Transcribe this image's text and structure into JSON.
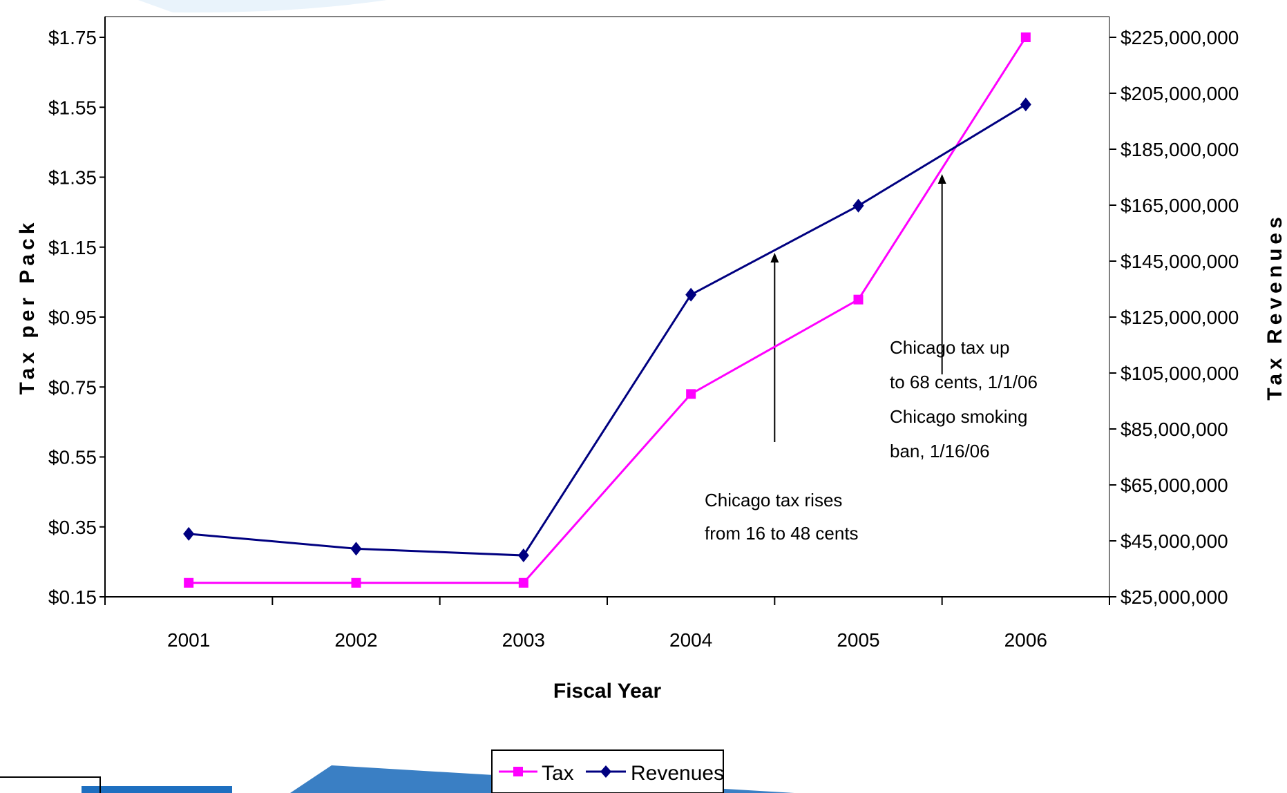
{
  "chart_data": {
    "type": "line",
    "title": "",
    "xlabel": "Fiscal Year",
    "ylabel": "Tax per Pack",
    "y2label": "Tax Revenues",
    "categories": [
      "2001",
      "2002",
      "2003",
      "2004",
      "2005",
      "2006"
    ],
    "y_ticks": [
      "$0.15",
      "$0.35",
      "$0.55",
      "$0.75",
      "$0.95",
      "$1.15",
      "$1.35",
      "$1.55",
      "$1.75"
    ],
    "y2_ticks": [
      "$25,000,000",
      "$45,000,000",
      "$65,000,000",
      "$85,000,000",
      "$105,000,000",
      "$125,000,000",
      "$145,000,000",
      "$165,000,000",
      "$185,000,000",
      "$205,000,000",
      "$225,000,000"
    ],
    "ylim": [
      0.15,
      1.75
    ],
    "y2lim": [
      25000000,
      225000000
    ],
    "series": [
      {
        "name": "Tax",
        "axis": "left",
        "color": "#ff00ff",
        "marker": "square",
        "values": [
          0.19,
          0.19,
          0.19,
          0.73,
          1.0,
          1.75
        ]
      },
      {
        "name": "Revenues",
        "axis": "right",
        "color": "#000080",
        "marker": "diamond",
        "values": [
          47500000,
          42200000,
          39800000,
          133000000,
          164800000,
          201000000
        ]
      }
    ],
    "annotations": [
      {
        "lines": [
          "Chicago tax rises",
          "from 16 to 48 cents"
        ]
      },
      {
        "lines": [
          "Chicago tax up",
          "to 68 cents, 1/1/06",
          "Chicago smoking",
          "ban, 1/16/06"
        ]
      }
    ],
    "legend_position": "bottom-center",
    "grid": false
  }
}
